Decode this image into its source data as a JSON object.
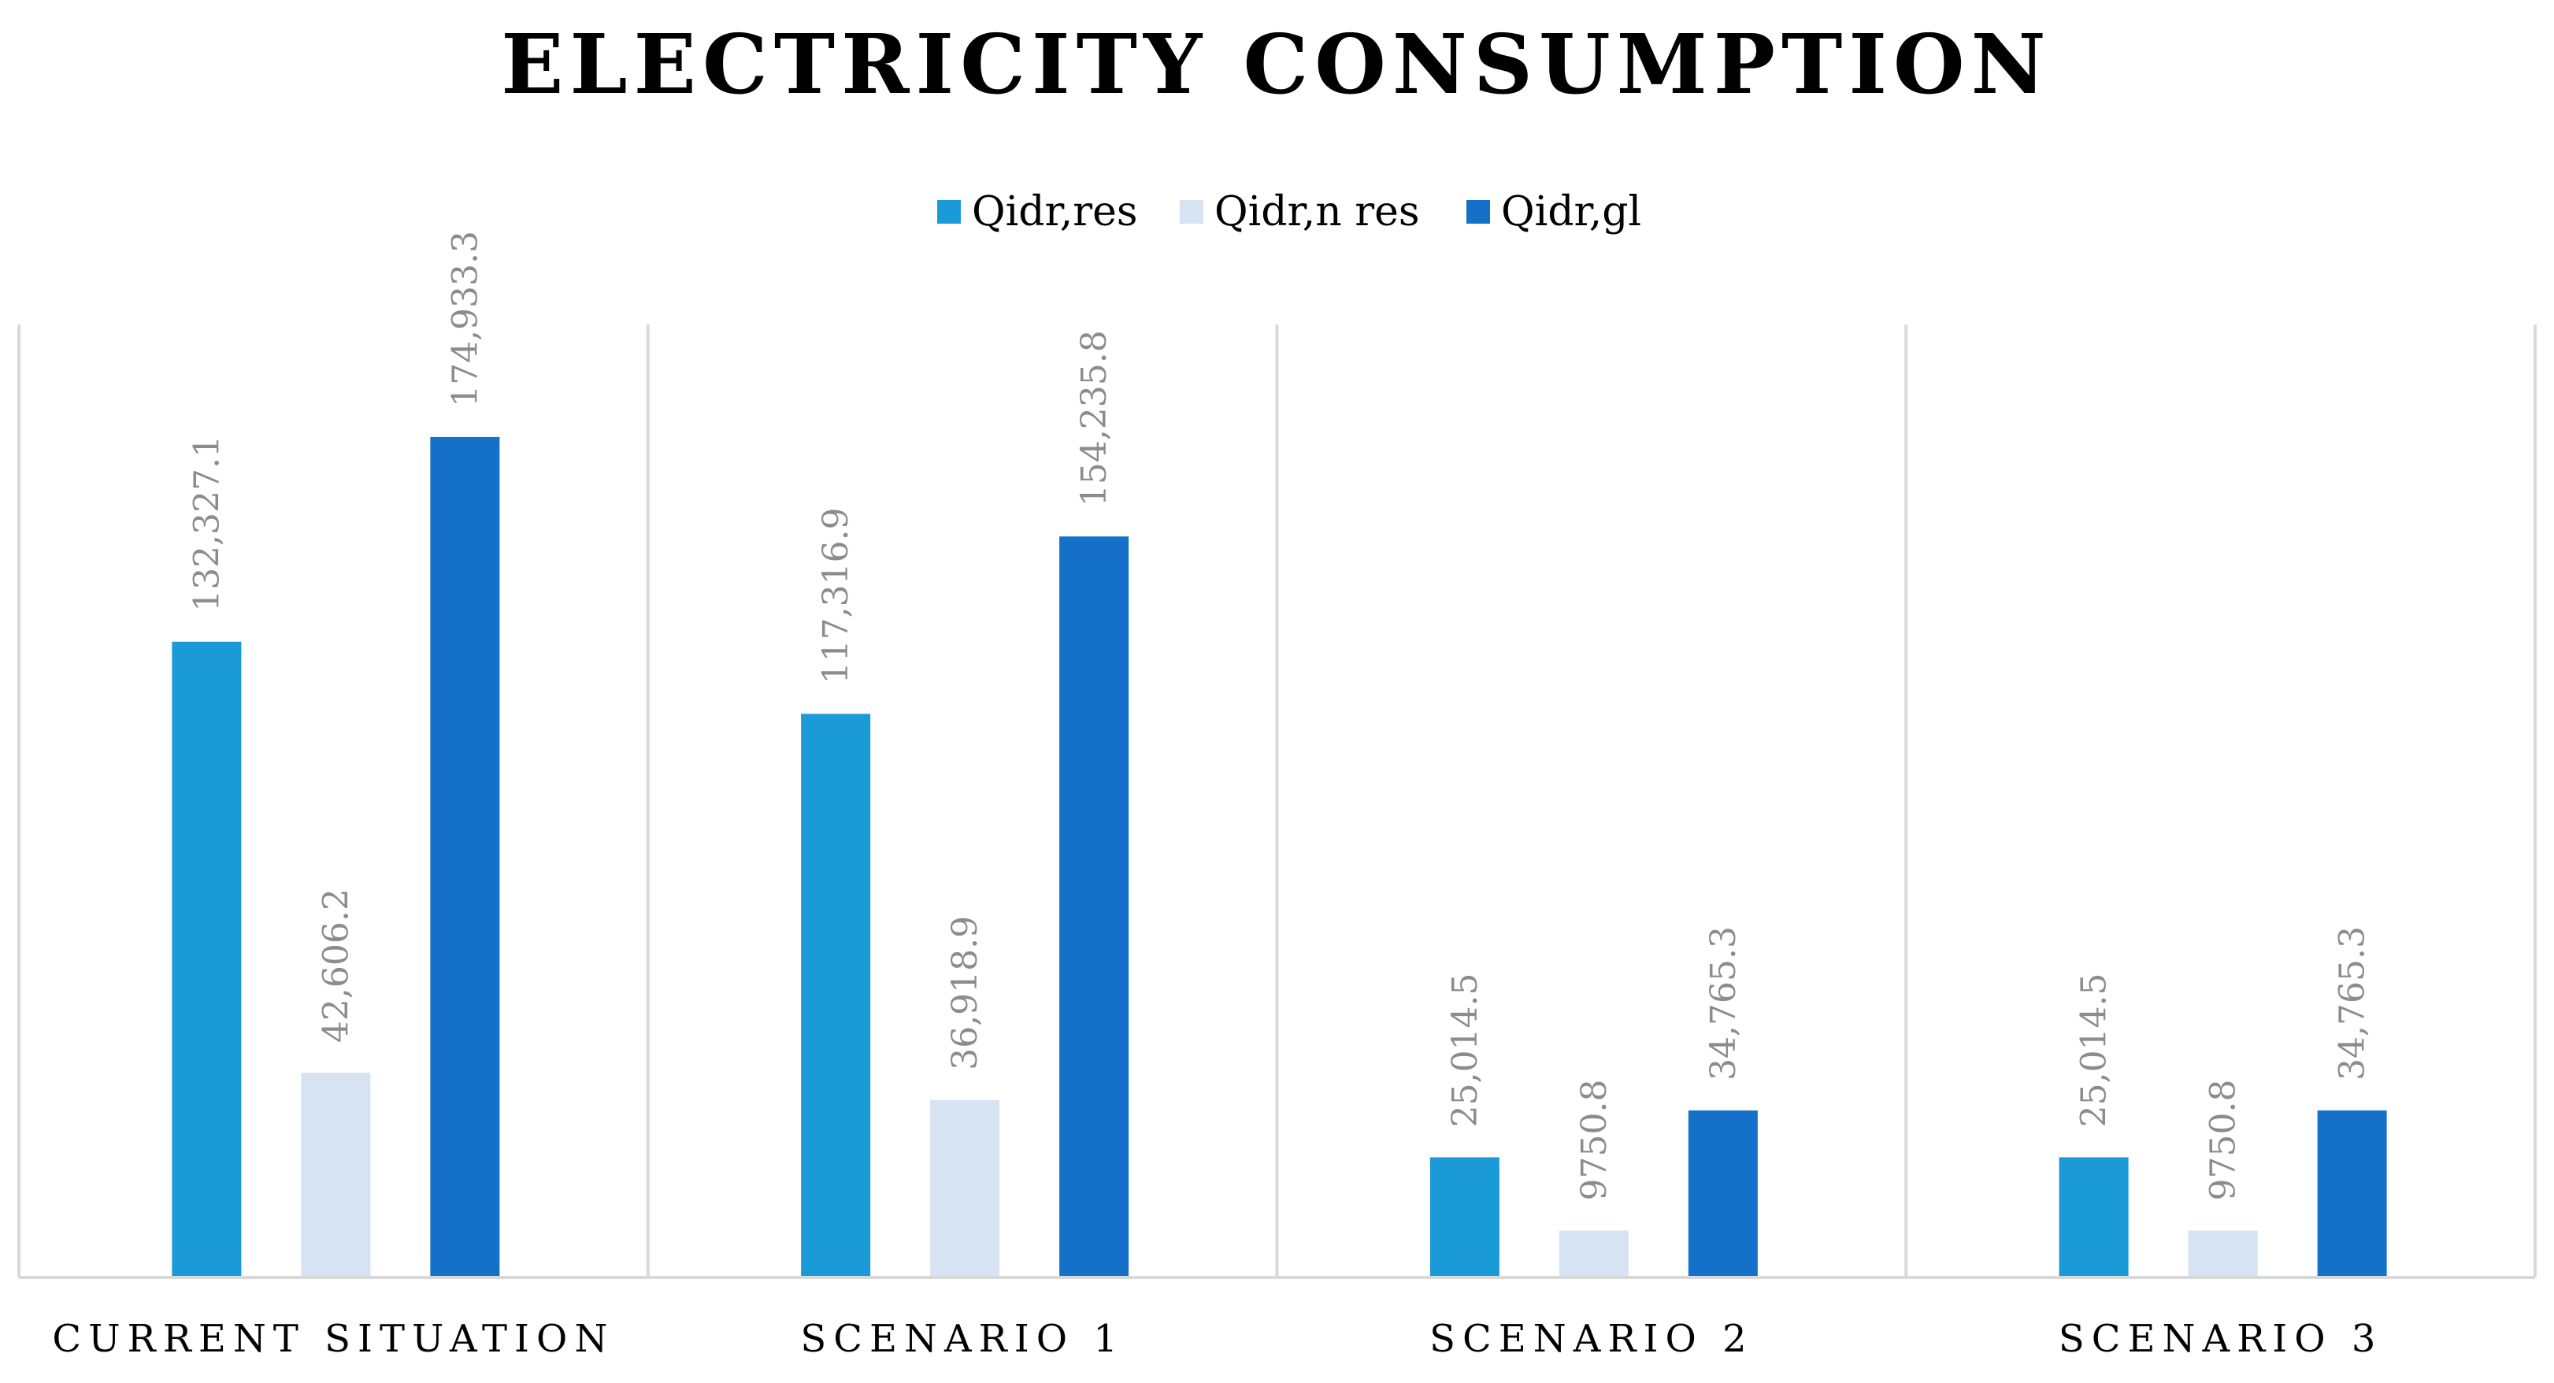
{
  "chart_data": {
    "type": "bar",
    "title": "ELECTRICITY CONSUMPTION",
    "xlabel": "",
    "ylabel": "",
    "ylim": [
      0,
      200000
    ],
    "grid": false,
    "legend_position": "top-center",
    "categories": [
      "CURRENT SITUATION",
      "SCENARIO 1",
      "SCENARIO 2",
      "SCENARIO 3"
    ],
    "series": [
      {
        "name": "Qidr,res",
        "color": "#1a9ad6",
        "values": [
          132327.1,
          117316.9,
          25014.5,
          25014.5
        ],
        "labels": [
          "132,327.1",
          "117,316.9",
          "25,014.5",
          "25,014.5"
        ]
      },
      {
        "name": "Qidr,n res",
        "color": "#d6e3f3",
        "values": [
          42606.2,
          36918.9,
          9750.8,
          9750.8
        ],
        "labels": [
          "42,606.2",
          "36,918.9",
          "9750.8",
          "9750.8"
        ]
      },
      {
        "name": "Qidr,gl",
        "color": "#1570c9",
        "values": [
          174933.3,
          154235.8,
          34765.3,
          34765.3
        ],
        "labels": [
          "174,933.3",
          "154,235.8",
          "34,765.3",
          "34,765.3"
        ]
      }
    ]
  }
}
